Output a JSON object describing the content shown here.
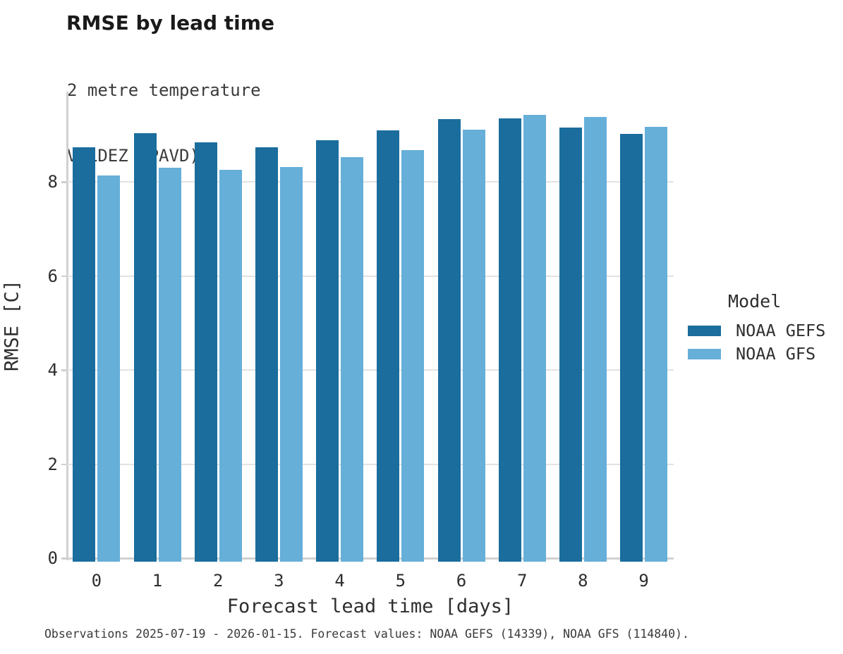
{
  "chart_data": {
    "type": "bar",
    "title": "RMSE by lead time",
    "subtitle_line1": "2 metre temperature",
    "subtitle_line2": "VALDEZ (PAVD)",
    "xlabel": "Forecast lead time [days]",
    "ylabel": "RMSE [C]",
    "categories": [
      "0",
      "1",
      "2",
      "3",
      "4",
      "5",
      "6",
      "7",
      "8",
      "9"
    ],
    "yticks": [
      "0",
      "2",
      "4",
      "6",
      "8"
    ],
    "ylim": [
      0,
      9.95
    ],
    "grid": "horizontal",
    "legend_position": "right",
    "legend_title": "Model",
    "series": [
      {
        "name": "NOAA GEFS",
        "color": "#1a6d9d",
        "values": [
          8.74,
          9.04,
          8.84,
          8.74,
          8.88,
          9.1,
          9.33,
          9.35,
          9.16,
          9.02
        ]
      },
      {
        "name": "NOAA GFS",
        "color": "#66afd9",
        "values": [
          8.13,
          8.3,
          8.26,
          8.31,
          8.53,
          8.67,
          9.11,
          9.43,
          9.38,
          9.17
        ]
      }
    ],
    "footnote": "Observations 2025-07-19 - 2026-01-15. Forecast values: NOAA GEFS (14339), NOAA GFS (114840)."
  }
}
